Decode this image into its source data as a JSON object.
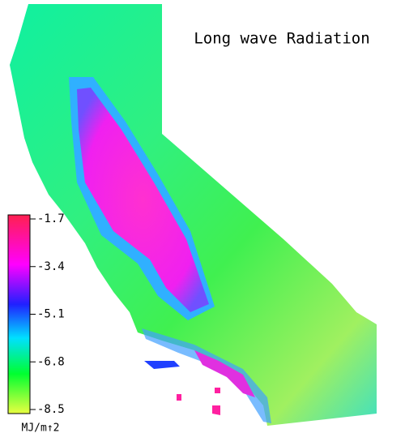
{
  "title": "Long wave Radiation",
  "legend": {
    "ticks": [
      -1.7,
      -3.4,
      -5.1,
      -6.8,
      -8.5
    ],
    "unit": "MJ/m↑2"
  }
}
